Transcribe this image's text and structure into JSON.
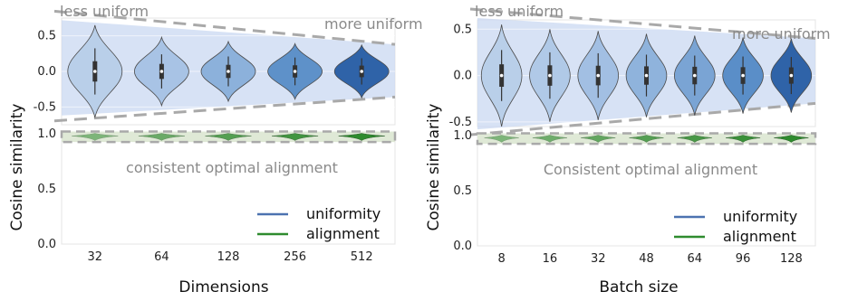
{
  "colors": {
    "uniformity": "#4c72b0",
    "alignment": "#2e8b2e",
    "band_fill": "#c9d8f2",
    "align_band_fill": "#dfe9d6",
    "dashed": "#a9a9a9",
    "annotation": "#8a8a8a"
  },
  "chart_data": [
    {
      "type": "violin",
      "xlabel": "Dimensions",
      "ylabel": "Cosine similarity",
      "categories": [
        "32",
        "64",
        "128",
        "256",
        "512"
      ],
      "upper_axis": {
        "yticks": [
          "0.5",
          "0.0",
          "-0.5"
        ],
        "ylim": [
          -0.75,
          0.75
        ]
      },
      "lower_axis": {
        "yticks": [
          "1.0",
          "0.5",
          "0.0"
        ],
        "ylim": [
          0,
          1.0
        ]
      },
      "series": [
        {
          "name": "uniformity",
          "spread": [
            0.65,
            0.48,
            0.42,
            0.39,
            0.37
          ],
          "fill_colors": [
            "#b9cfe9",
            "#a8c3e5",
            "#8cb1db",
            "#5e91c9",
            "#2f63a8"
          ]
        },
        {
          "name": "alignment",
          "values": [
            0.98,
            0.98,
            0.98,
            0.98,
            0.98
          ]
        }
      ],
      "annotations": {
        "top_left": "less uniform",
        "top_right": "more uniform",
        "bottom": "consistent optimal alignment"
      }
    },
    {
      "type": "violin",
      "xlabel": "Batch size",
      "ylabel": "Cosine similarity",
      "categories": [
        "8",
        "16",
        "32",
        "48",
        "64",
        "96",
        "128"
      ],
      "upper_axis": {
        "yticks": [
          "0.5",
          "0.0",
          "-0.5"
        ],
        "ylim": [
          -0.55,
          0.6
        ]
      },
      "lower_axis": {
        "yticks": [
          "1.0",
          "0.5",
          "0.0"
        ],
        "ylim": [
          0,
          1.0
        ]
      },
      "series": [
        {
          "name": "uniformity",
          "spread": [
            0.55,
            0.5,
            0.48,
            0.45,
            0.43,
            0.41,
            0.4
          ],
          "fill_colors": [
            "#b9cfe9",
            "#b0c9e7",
            "#a2bfe3",
            "#8fb3dc",
            "#7aa4d4",
            "#5a8ec8",
            "#2f63a8"
          ]
        },
        {
          "name": "alignment",
          "values": [
            0.98,
            0.98,
            0.98,
            0.98,
            0.98,
            0.98,
            0.98
          ]
        }
      ],
      "annotations": {
        "top_left": "less uniform",
        "top_right": "more uniform",
        "bottom": "Consistent optimal alignment"
      }
    }
  ]
}
